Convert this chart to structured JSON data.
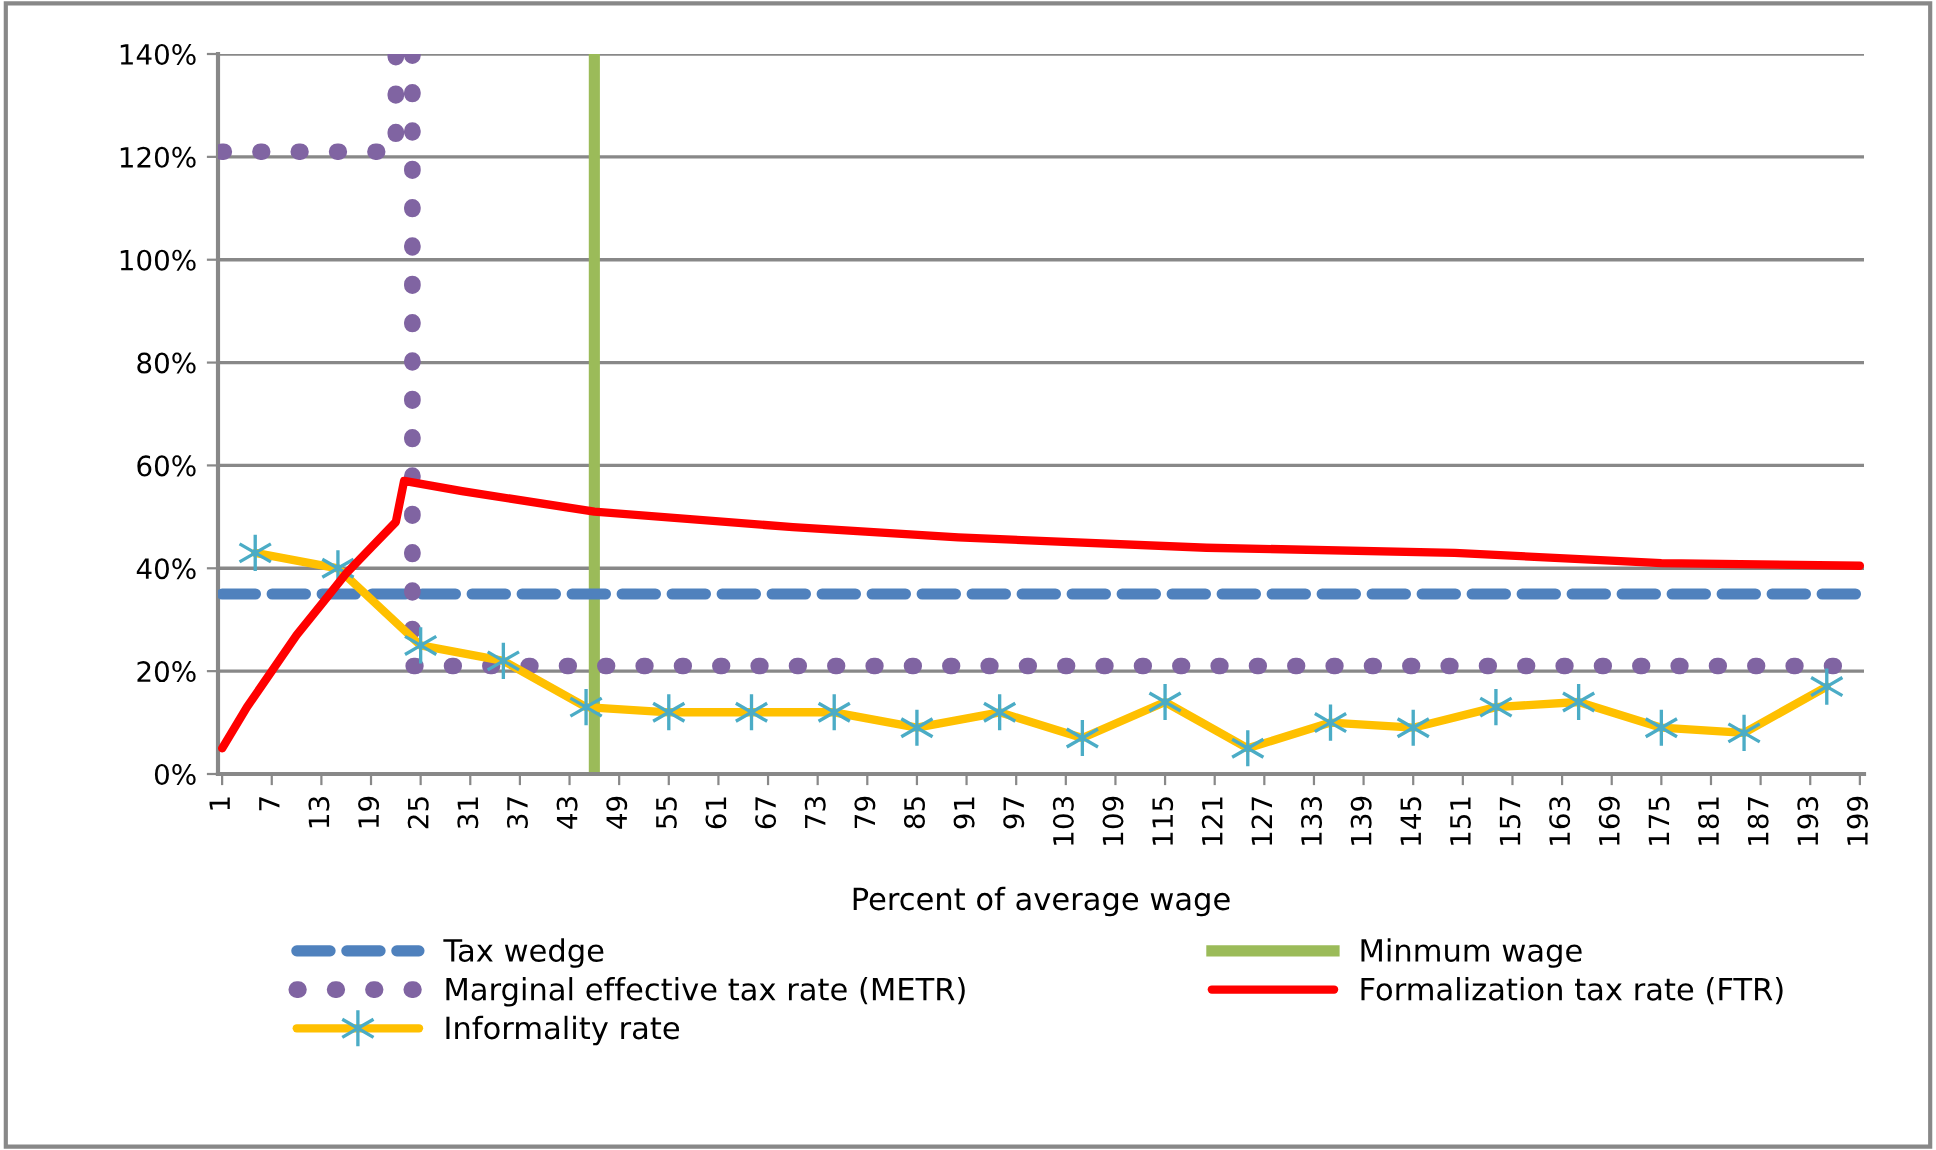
{
  "chart_data": {
    "type": "line",
    "xlabel": "Percent of average wage",
    "xlim": [
      0.5,
      199.5
    ],
    "xticks": [
      1,
      7,
      13,
      19,
      25,
      31,
      37,
      43,
      49,
      55,
      61,
      67,
      73,
      79,
      85,
      91,
      97,
      103,
      109,
      115,
      121,
      127,
      133,
      139,
      145,
      151,
      157,
      163,
      169,
      175,
      181,
      187,
      193,
      199
    ],
    "ylim": [
      0,
      140
    ],
    "yticks": [
      {
        "value": 0,
        "label": "0%"
      },
      {
        "value": 20,
        "label": "20%"
      },
      {
        "value": 40,
        "label": "40%"
      },
      {
        "value": 60,
        "label": "60%"
      },
      {
        "value": 80,
        "label": "80%"
      },
      {
        "value": 100,
        "label": "100%"
      },
      {
        "value": 120,
        "label": "120%"
      },
      {
        "value": 140,
        "label": "140%"
      }
    ],
    "grid": "y",
    "legend": "bottom",
    "series": [
      {
        "name": "Tax wedge",
        "color": "#4f81bd",
        "line_style": "dashed",
        "marker": "none",
        "x": [
          1,
          199
        ],
        "values": [
          35,
          35
        ]
      },
      {
        "name": "Marginal effective tax rate (METR)",
        "color": "#8064a2",
        "line_style": "dotted",
        "marker": "none",
        "x": [
          1,
          22,
          22,
          23,
          24,
          24,
          199
        ],
        "values": [
          121,
          121,
          140,
          null,
          140,
          21,
          21
        ]
      },
      {
        "name": "Informality rate",
        "color": "#ffc000",
        "line_style": "solid",
        "marker": "cross",
        "colors": [
          "#4bacc6",
          "#4bacc6",
          "#4bacc6",
          "#4bacc6",
          "#4bacc6",
          "#4bacc6",
          "#4bacc6",
          "#4bacc6",
          "#4bacc6",
          "#4bacc6",
          "#4bacc6",
          "#4bacc6",
          "#4bacc6",
          "#4bacc6",
          "#4bacc6",
          "#4bacc6",
          "#4bacc6",
          "#4bacc6",
          "#4bacc6",
          "#4bacc6"
        ],
        "x": [
          5,
          15,
          25,
          35,
          45,
          55,
          65,
          75,
          85,
          95,
          105,
          115,
          125,
          135,
          145,
          155,
          165,
          175,
          185,
          195
        ],
        "values": [
          43,
          40,
          25,
          22,
          13,
          12,
          12,
          12,
          9,
          12,
          7,
          14,
          5,
          10,
          9,
          13,
          14,
          9,
          8,
          17
        ]
      },
      {
        "name": "Formalization tax rate (FTR)",
        "color": "#ff0000",
        "line_style": "solid",
        "marker": "none",
        "x": [
          1,
          4,
          7,
          10,
          13,
          16,
          19,
          22,
          23,
          30,
          46,
          70,
          90,
          120,
          150,
          175,
          199
        ],
        "values": [
          5,
          13,
          20,
          27,
          33,
          39,
          44,
          49,
          57,
          55,
          51,
          48,
          46,
          44,
          43,
          41,
          40.5
        ]
      }
    ],
    "ref_lines": [
      {
        "axis": "x",
        "value": 46,
        "label": "Minmum wage",
        "color": "#9bbb59",
        "line_style": "solid"
      }
    ]
  }
}
